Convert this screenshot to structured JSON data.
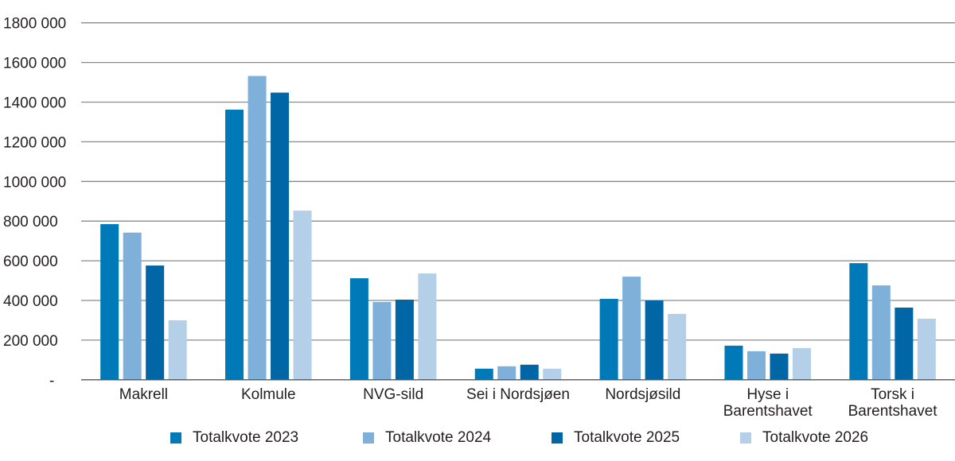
{
  "chart_data": {
    "type": "bar",
    "categories": [
      "Makrell",
      "Kolmule",
      "NVG-sild",
      "Sei i Nordsjøen",
      "Nordsjøsild",
      "Hyse i Barentshavet",
      "Torsk i Barentshavet"
    ],
    "category_lines": [
      [
        "Makrell"
      ],
      [
        "Kolmule"
      ],
      [
        "NVG-sild"
      ],
      [
        "Sei i Nordsjøen"
      ],
      [
        "Nordsjøsild"
      ],
      [
        "Hyse i",
        "Barentshavet"
      ],
      [
        "Torsk i",
        "Barentshavet"
      ]
    ],
    "series": [
      {
        "name": "Totalkvote 2023",
        "color": "#0079b8",
        "values": [
          785000,
          1362000,
          512000,
          56000,
          408000,
          172000,
          588000
        ]
      },
      {
        "name": "Totalkvote 2024",
        "color": "#7fb0da",
        "values": [
          742000,
          1532000,
          392000,
          68000,
          520000,
          144000,
          476000
        ]
      },
      {
        "name": "Totalkvote 2025",
        "color": "#0066a6",
        "values": [
          576000,
          1448000,
          404000,
          76000,
          400000,
          132000,
          364000
        ]
      },
      {
        "name": "Totalkvote 2026",
        "color": "#b3d0e8",
        "values": [
          300000,
          853000,
          536000,
          56000,
          332000,
          160000,
          308000
        ]
      }
    ],
    "y_ticks": [
      0,
      200000,
      400000,
      600000,
      800000,
      1000000,
      1200000,
      1400000,
      1600000,
      1800000
    ],
    "y_tick_labels": [
      "-",
      "200 000",
      "400 000",
      "600 000",
      "800 000",
      "1000 000",
      "1200 000",
      "1400 000",
      "1600 000",
      "1800 000"
    ],
    "ylim": [
      0,
      1800000
    ],
    "grid": true,
    "legend_position": "bottom",
    "title": "",
    "xlabel": "",
    "ylabel": ""
  }
}
